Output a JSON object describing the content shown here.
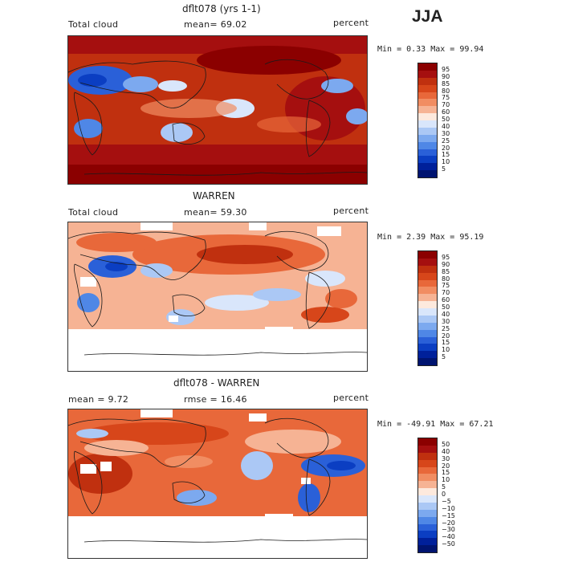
{
  "season": "JJA",
  "panels": [
    {
      "title": "dflt078 (yrs 1-1)",
      "left_label": "Total cloud",
      "stat_label": "mean=  69.02",
      "units": "percent",
      "minmax": "Min =   0.33 Max =  99.94",
      "colorbar": {
        "labels": [
          "95",
          "90",
          "85",
          "80",
          "75",
          "70",
          "60",
          "50",
          "40",
          "30",
          "25",
          "20",
          "15",
          "10",
          "5"
        ],
        "colors": [
          "#8b0000",
          "#a50f0f",
          "#c0300f",
          "#d7461a",
          "#e8683a",
          "#f18d62",
          "#f6b394",
          "#fde9dd",
          "#d9e6fb",
          "#abc8f5",
          "#7ca9ef",
          "#4f87e6",
          "#2a60d8",
          "#0b3ec2",
          "#00209a",
          "#001470"
        ]
      }
    },
    {
      "title": "WARREN",
      "left_label": "Total cloud",
      "stat_label": "mean=  59.30",
      "units": "percent",
      "minmax": "Min =   2.39 Max =  95.19",
      "colorbar": {
        "labels": [
          "95",
          "90",
          "85",
          "80",
          "75",
          "70",
          "60",
          "50",
          "40",
          "30",
          "25",
          "20",
          "15",
          "10",
          "5"
        ],
        "colors": [
          "#8b0000",
          "#a50f0f",
          "#c0300f",
          "#d7461a",
          "#e8683a",
          "#f18d62",
          "#f6b394",
          "#fde9dd",
          "#d9e6fb",
          "#abc8f5",
          "#7ca9ef",
          "#4f87e6",
          "#2a60d8",
          "#0b3ec2",
          "#00209a",
          "#001470"
        ]
      }
    },
    {
      "title": "dflt078 - WARREN",
      "left_label": "mean =   9.72",
      "stat_label": "rmse =  16.46",
      "units": "percent",
      "minmax": "Min = -49.91 Max =  67.21",
      "colorbar": {
        "labels": [
          "50",
          "40",
          "30",
          "20",
          "15",
          "10",
          "5",
          "0",
          "−5",
          "−10",
          "−15",
          "−20",
          "−30",
          "−40",
          "−50"
        ],
        "colors": [
          "#8b0000",
          "#a50f0f",
          "#c0300f",
          "#d7461a",
          "#e8683a",
          "#f18d62",
          "#f6b394",
          "#fde9dd",
          "#d9e6fb",
          "#abc8f5",
          "#7ca9ef",
          "#4f87e6",
          "#2a60d8",
          "#0b3ec2",
          "#00209a",
          "#001470"
        ]
      }
    }
  ],
  "chart_data": [
    {
      "type": "heatmap",
      "title": "dflt078 (yrs 1-1)",
      "variable": "Total cloud",
      "units": "percent",
      "mean": 69.02,
      "min": 0.33,
      "max": 99.94,
      "contour_levels": [
        5,
        10,
        15,
        20,
        25,
        30,
        40,
        50,
        60,
        70,
        75,
        80,
        85,
        90,
        95
      ]
    },
    {
      "type": "heatmap",
      "title": "WARREN",
      "variable": "Total cloud",
      "units": "percent",
      "mean": 59.3,
      "min": 2.39,
      "max": 95.19,
      "contour_levels": [
        5,
        10,
        15,
        20,
        25,
        30,
        40,
        50,
        60,
        70,
        75,
        80,
        85,
        90,
        95
      ]
    },
    {
      "type": "heatmap",
      "title": "dflt078 - WARREN",
      "units": "percent",
      "mean": 9.72,
      "rmse": 16.46,
      "min": -49.91,
      "max": 67.21,
      "contour_levels": [
        -50,
        -40,
        -30,
        -20,
        -15,
        -10,
        -5,
        0,
        5,
        10,
        15,
        20,
        30,
        40,
        50
      ]
    }
  ]
}
